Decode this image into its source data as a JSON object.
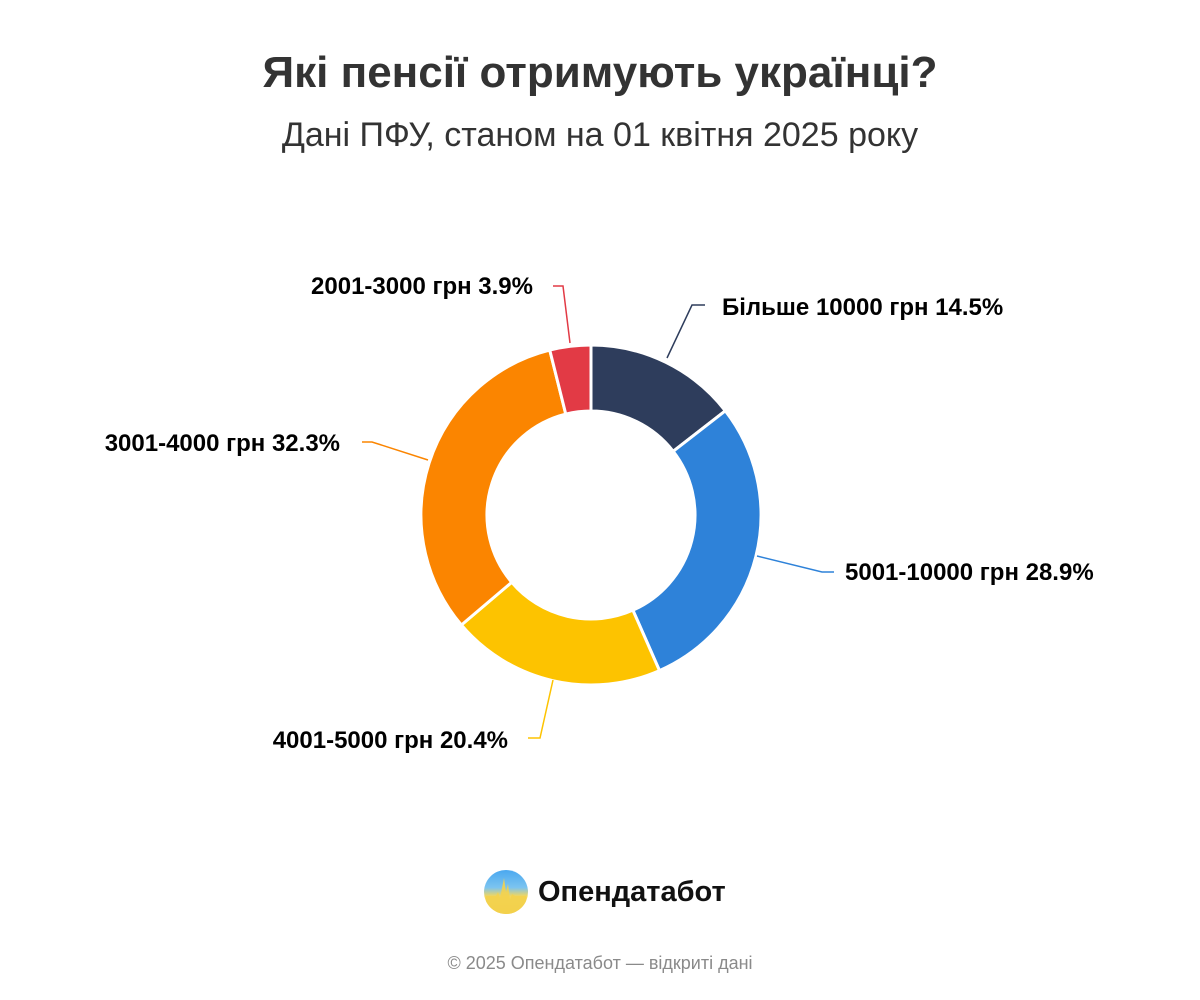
{
  "chart_data": {
    "type": "pie",
    "variant": "donut",
    "title": "Які пенсії отримують українці?",
    "subtitle": "Дані ПФУ, станом на 01 квітня 2025 року",
    "slices": [
      {
        "label": "Більше 10000 грн",
        "value": 14.5,
        "display": "Більше 10000 грн 14.5%",
        "color": "#2e3d5c"
      },
      {
        "label": "5001-10000 грн",
        "value": 28.9,
        "display": "5001-10000 грн 28.9%",
        "color": "#2e82d9"
      },
      {
        "label": "4001-5000 грн",
        "value": 20.4,
        "display": "4001-5000 грн 20.4%",
        "color": "#fdc300"
      },
      {
        "label": "3001-4000 грн",
        "value": 32.3,
        "display": "3001-4000 грн 32.3%",
        "color": "#fb8500"
      },
      {
        "label": "2001-3000 грн",
        "value": 3.9,
        "display": "2001-3000 грн 3.9%",
        "color": "#e23a45"
      }
    ],
    "legend": "none",
    "data_labels": "outside with leader lines"
  },
  "branding": {
    "logo_text": "Опендатабот",
    "logo_icon": "opendatabot-logo-icon"
  },
  "footer": "© 2025 Опендатабот — відкриті дані"
}
